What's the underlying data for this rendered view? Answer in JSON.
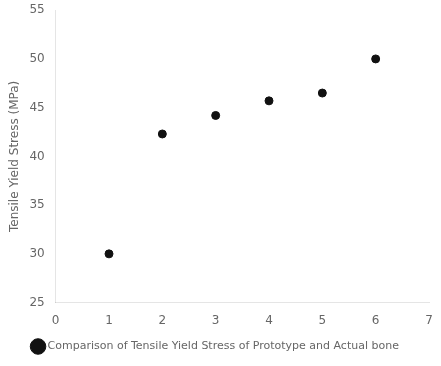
{
  "chart_data": {
    "type": "scatter",
    "ylabel": "Tensile Yield Stress (MPa)",
    "x": [
      1,
      2,
      3,
      4,
      5,
      6
    ],
    "series": [
      {
        "name": "Comparison of Tensile Yield Stress of Prototype and Actual bone",
        "color": "#111111",
        "values": [
          30,
          42.3,
          44.2,
          45.7,
          46.5,
          50
        ]
      }
    ],
    "xlim": [
      0,
      7
    ],
    "ylim": [
      25,
      55
    ],
    "xticks": [
      0,
      1,
      2,
      3,
      4,
      5,
      6,
      7
    ],
    "yticks": [
      25,
      30,
      35,
      40,
      45,
      50,
      55
    ],
    "marker": "o",
    "grid": false,
    "legend": "bottom"
  }
}
